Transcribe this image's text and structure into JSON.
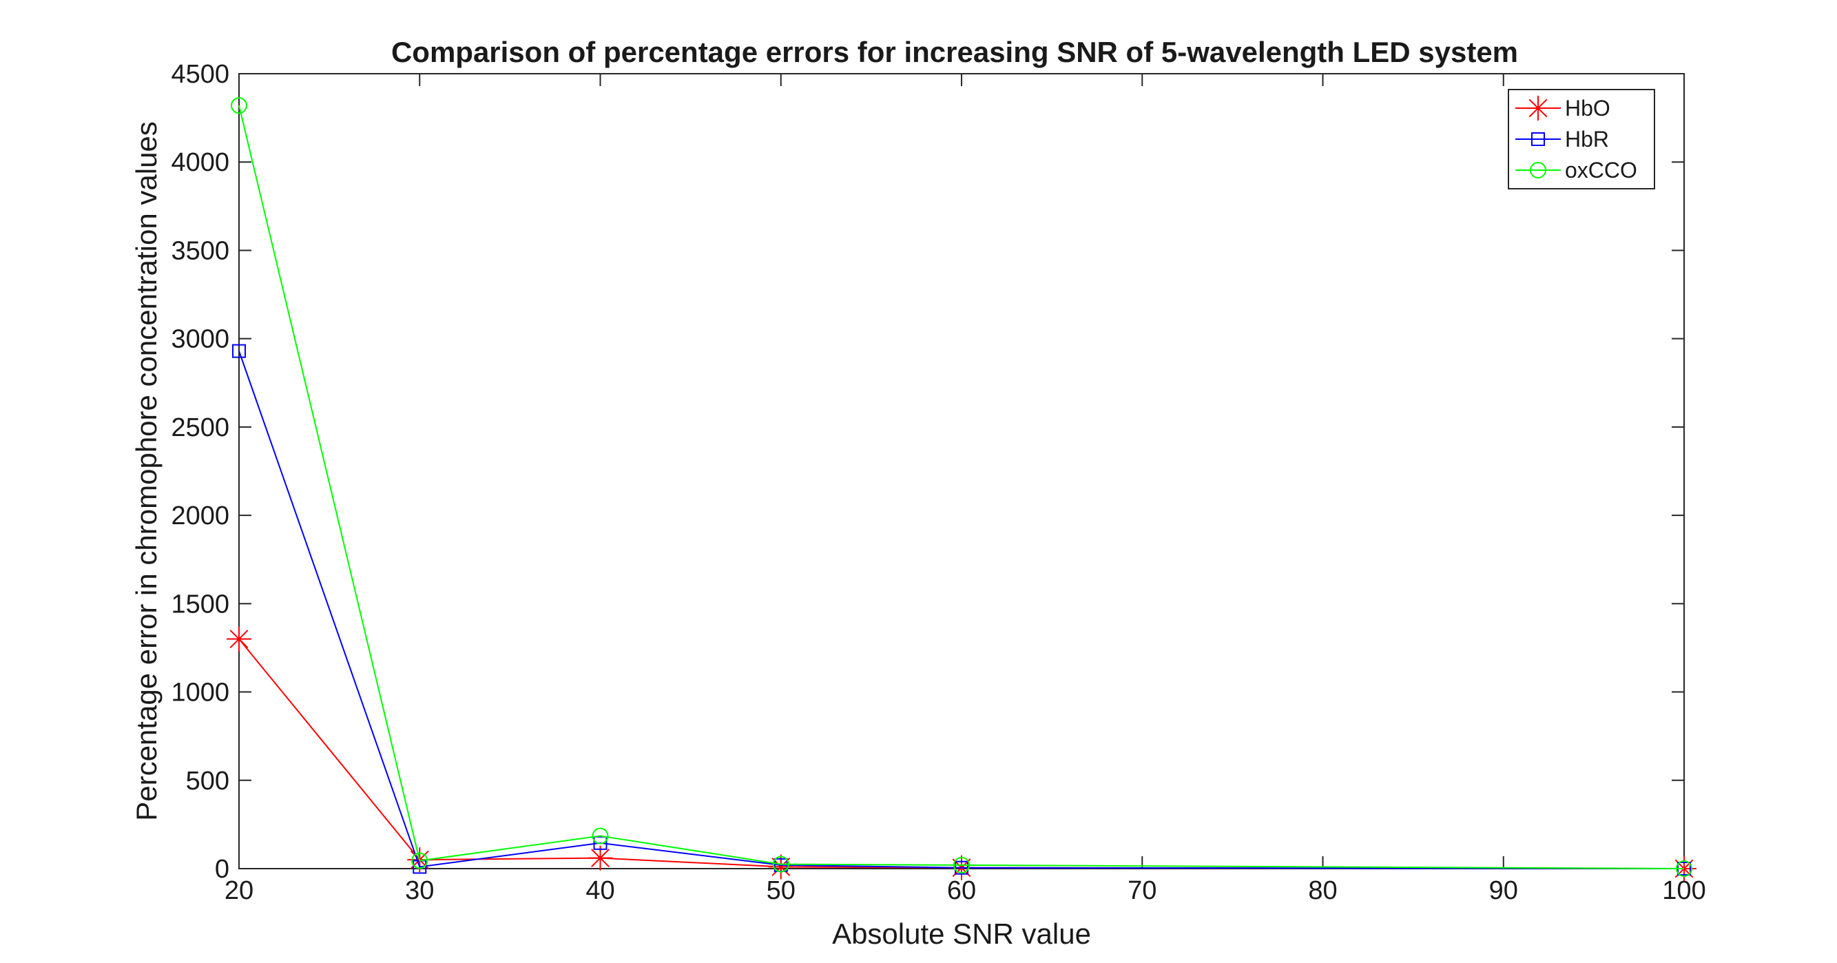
{
  "chart_data": {
    "type": "line",
    "title": "Comparison of percentage errors for increasing SNR of 5-wavelength LED system",
    "xlabel": "Absolute SNR value",
    "ylabel": "Percentage error in chromophore concentration values",
    "xlim": [
      20,
      100
    ],
    "ylim": [
      0,
      4500
    ],
    "xticks": [
      "20",
      "30",
      "40",
      "50",
      "60",
      "70",
      "80",
      "90",
      "100"
    ],
    "yticks": [
      "0",
      "500",
      "1000",
      "1500",
      "2000",
      "2500",
      "3000",
      "3500",
      "4000",
      "4500"
    ],
    "x": [
      20,
      30,
      40,
      50,
      60,
      100
    ],
    "grid": false,
    "legend_position": "top-right",
    "series": [
      {
        "name": "HbO",
        "color": "#ff0000",
        "marker": "asterisk",
        "values": [
          1300,
          50,
          60,
          10,
          5,
          0
        ]
      },
      {
        "name": "HbR",
        "color": "#0000ff",
        "marker": "square",
        "values": [
          2930,
          10,
          145,
          20,
          5,
          0
        ]
      },
      {
        "name": "oxCCO",
        "color": "#00ff00",
        "marker": "circle",
        "values": [
          4320,
          45,
          185,
          25,
          20,
          0
        ]
      }
    ]
  }
}
